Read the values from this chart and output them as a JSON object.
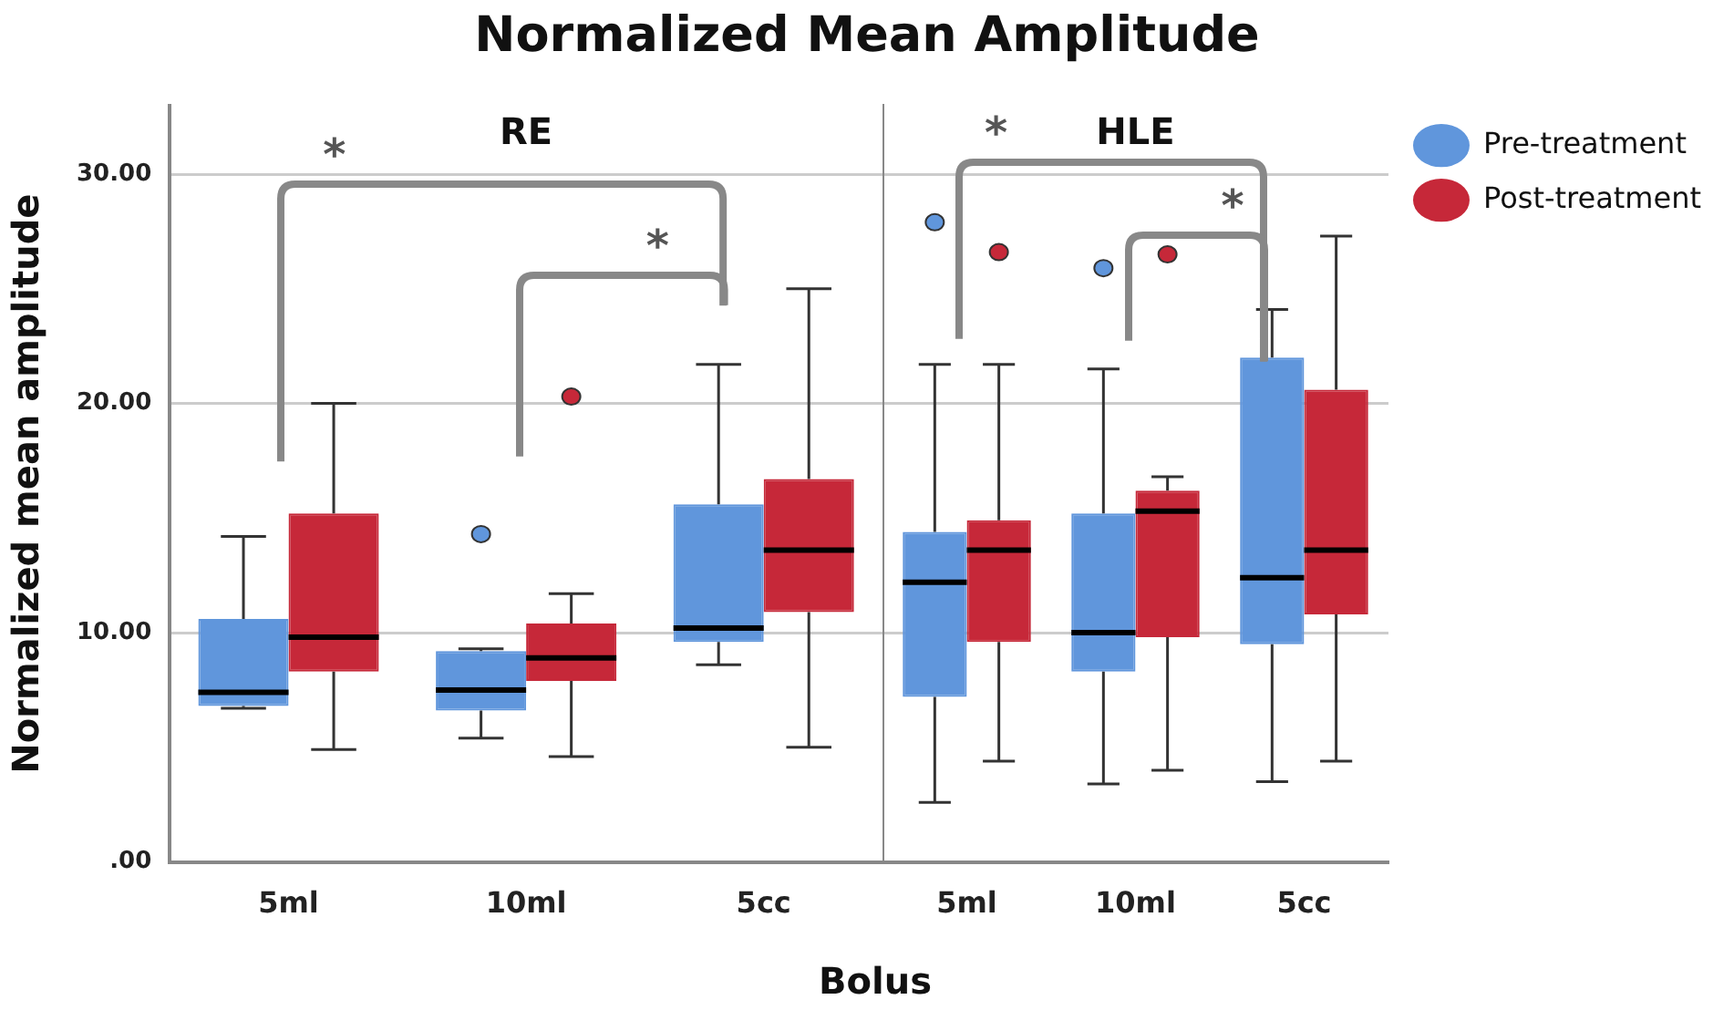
{
  "chart_data": [
    {
      "type": "box",
      "title": "Normalized Mean Amplitude",
      "subtitle": "RE",
      "xlabel": "Bolus",
      "ylabel": "Normalized mean amplitude",
      "categories": [
        "5ml",
        "10ml",
        "5cc"
      ],
      "ylim": [
        0,
        33
      ],
      "yticks": [
        {
          "value": 0,
          "label": ".00"
        },
        {
          "value": 10,
          "label": "10.00"
        },
        {
          "value": 20,
          "label": "20.00"
        },
        {
          "value": 30,
          "label": "30.00"
        }
      ],
      "grid": "y",
      "annotations": [
        "*",
        "*"
      ],
      "series": [
        {
          "color": "#6096dc",
          "boxes": [
            {
              "low": 6.7,
              "q1": 6.8,
              "median": 7.4,
              "q3": 10.6,
              "high": 14.2
            },
            {
              "low": 5.4,
              "q1": 6.6,
              "median": 7.5,
              "q3": 9.2,
              "high": 9.3,
              "outliers": [
                14.3
              ]
            },
            {
              "low": 8.6,
              "q1": 9.6,
              "median": 10.2,
              "q3": 15.6,
              "high": 21.7
            }
          ]
        },
        {
          "color": "#c62839",
          "boxes": [
            {
              "low": 4.9,
              "q1": 8.3,
              "median": 9.8,
              "q3": 15.2,
              "high": 20.0
            },
            {
              "low": 4.6,
              "q1": 7.9,
              "median": 8.9,
              "q3": 10.4,
              "high": 11.7,
              "outliers": [
                20.3
              ]
            },
            {
              "low": 5.0,
              "q1": 10.9,
              "median": 13.6,
              "q3": 16.7,
              "high": 25.0
            }
          ]
        }
      ]
    },
    {
      "type": "box",
      "subtitle": "HLE",
      "categories": [
        "5ml",
        "10ml",
        "5cc"
      ],
      "ylim": [
        0,
        33
      ],
      "grid": "y",
      "tick_labels": "x",
      "legend": "top right",
      "annotations": [
        "*",
        "*"
      ],
      "series": [
        {
          "name": "Pre-treatment",
          "color": "#6096dc",
          "boxes": [
            {
              "low": 2.6,
              "q1": 7.2,
              "median": 12.2,
              "q3": 14.4,
              "high": 21.7,
              "outliers": [
                27.9
              ]
            },
            {
              "low": 3.4,
              "q1": 8.3,
              "median": 10.0,
              "q3": 15.2,
              "high": 21.5,
              "outliers": [
                25.9
              ]
            },
            {
              "low": 3.5,
              "q1": 9.5,
              "median": 12.4,
              "q3": 22.0,
              "high": 24.1
            }
          ]
        },
        {
          "name": "Post-treatment",
          "color": "#c62839",
          "boxes": [
            {
              "low": 4.4,
              "q1": 9.6,
              "median": 13.6,
              "q3": 14.9,
              "high": 21.7,
              "outliers": [
                26.6
              ]
            },
            {
              "low": 4.0,
              "q1": 9.8,
              "median": 15.3,
              "q3": 16.2,
              "high": 16.8,
              "outliers": [
                26.5
              ]
            },
            {
              "low": 4.4,
              "q1": 10.8,
              "median": 13.6,
              "q3": 20.6,
              "high": 27.3
            }
          ]
        }
      ]
    }
  ]
}
